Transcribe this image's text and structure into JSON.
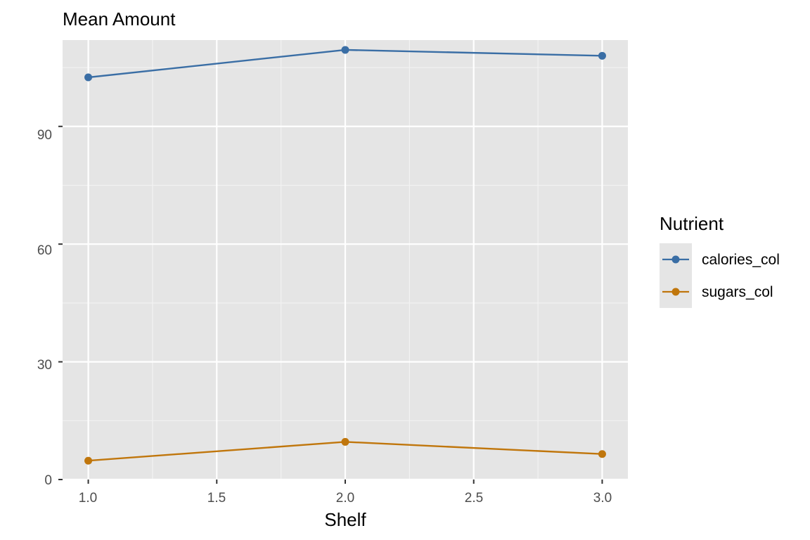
{
  "chart_data": {
    "type": "line",
    "title": "Mean Amount",
    "xlabel": "Shelf",
    "ylabel": "",
    "x": [
      1,
      2,
      3
    ],
    "xlim": [
      0.9,
      3.1
    ],
    "ylim": [
      0,
      112
    ],
    "x_ticks": [
      "1.0",
      "1.5",
      "2.0",
      "2.5",
      "3.0"
    ],
    "y_ticks": [
      "0",
      "30",
      "60",
      "90"
    ],
    "grid": true,
    "legend": {
      "title": "Nutrient",
      "position": "right"
    },
    "series": [
      {
        "name": "calories_col",
        "color": "#3A6EA5",
        "values": [
          102.5,
          109.5,
          108.0
        ]
      },
      {
        "name": "sugars_col",
        "color": "#C0760C",
        "values": [
          4.8,
          9.6,
          6.5
        ]
      }
    ]
  }
}
